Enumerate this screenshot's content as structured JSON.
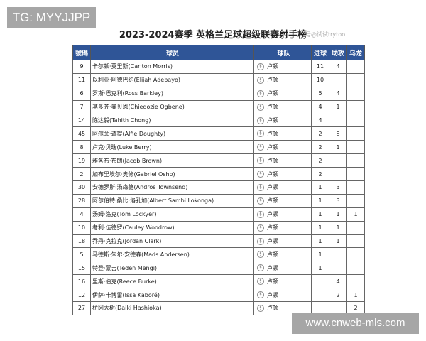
{
  "watermarks": {
    "top_left": "TG: MYYJJPP",
    "bottom_right": "www.cnweb-mls.com",
    "title_overlay": "号@试试trytoo"
  },
  "title": "2023-2024赛季  英格兰足球超级联赛射手榜",
  "colors": {
    "header_bg": "#2f5597",
    "header_text": "#ffffff"
  },
  "headers": [
    "號碼",
    "球员",
    "球队",
    "进球",
    "助攻",
    "乌龙"
  ],
  "team_icon": "luton-crest-icon",
  "rows": [
    {
      "no": "9",
      "player": "卡尔顿·莫里斯(Carlton Morris)",
      "team": "卢顿",
      "goals": "11",
      "assists": "4",
      "own_goals": ""
    },
    {
      "no": "11",
      "player": "以利亚·阿德巴约(Elijah Adebayo)",
      "team": "卢顿",
      "goals": "10",
      "assists": "",
      "own_goals": ""
    },
    {
      "no": "6",
      "player": "罗斯·巴克利(Ross Barkley)",
      "team": "卢顿",
      "goals": "5",
      "assists": "4",
      "own_goals": ""
    },
    {
      "no": "7",
      "player": "基多齐·奥贝恩(Chiedozie Ogbene)",
      "team": "卢顿",
      "goals": "4",
      "assists": "1",
      "own_goals": ""
    },
    {
      "no": "14",
      "player": "陈达毅(Tahith Chong)",
      "team": "卢顿",
      "goals": "4",
      "assists": "",
      "own_goals": ""
    },
    {
      "no": "45",
      "player": "阿尔菲·道提(Alfie Doughty)",
      "team": "卢顿",
      "goals": "2",
      "assists": "8",
      "own_goals": ""
    },
    {
      "no": "8",
      "player": "卢克·贝瑞(Luke Berry)",
      "team": "卢顿",
      "goals": "2",
      "assists": "1",
      "own_goals": ""
    },
    {
      "no": "19",
      "player": "雅各布·布朗(Jacob Brown)",
      "team": "卢顿",
      "goals": "2",
      "assists": "",
      "own_goals": ""
    },
    {
      "no": "2",
      "player": "加布里埃尔·奥修(Gabriel Osho)",
      "team": "卢顿",
      "goals": "2",
      "assists": "",
      "own_goals": ""
    },
    {
      "no": "30",
      "player": "安德罗斯·汤森德(Andros Townsend)",
      "team": "卢顿",
      "goals": "1",
      "assists": "3",
      "own_goals": ""
    },
    {
      "no": "28",
      "player": "阿尔伯特·桑比·洛孔加(Albert Sambi Lokonga)",
      "team": "卢顿",
      "goals": "1",
      "assists": "3",
      "own_goals": ""
    },
    {
      "no": "4",
      "player": "汤姆·洛克(Tom Lockyer)",
      "team": "卢顿",
      "goals": "1",
      "assists": "1",
      "own_goals": "1"
    },
    {
      "no": "10",
      "player": "考利·伍德罗(Cauley Woodrow)",
      "team": "卢顿",
      "goals": "1",
      "assists": "1",
      "own_goals": ""
    },
    {
      "no": "18",
      "player": "乔丹·克拉克(Jordan Clark)",
      "team": "卢顿",
      "goals": "1",
      "assists": "1",
      "own_goals": ""
    },
    {
      "no": "5",
      "player": "马德斯·朱尔·安德森(Mads Andersen)",
      "team": "卢顿",
      "goals": "1",
      "assists": "",
      "own_goals": ""
    },
    {
      "no": "15",
      "player": "特登·蒙吉(Teden Mengi)",
      "team": "卢顿",
      "goals": "1",
      "assists": "",
      "own_goals": ""
    },
    {
      "no": "16",
      "player": "里斯·伯克(Reece Burke)",
      "team": "卢顿",
      "goals": "",
      "assists": "4",
      "own_goals": ""
    },
    {
      "no": "12",
      "player": "伊萨·卡博雷(Issa Kaboré)",
      "team": "卢顿",
      "goals": "",
      "assists": "2",
      "own_goals": "1"
    },
    {
      "no": "27",
      "player": "桥冈大树(Daiki Hashioka)",
      "team": "卢顿",
      "goals": "",
      "assists": "",
      "own_goals": "2"
    }
  ]
}
